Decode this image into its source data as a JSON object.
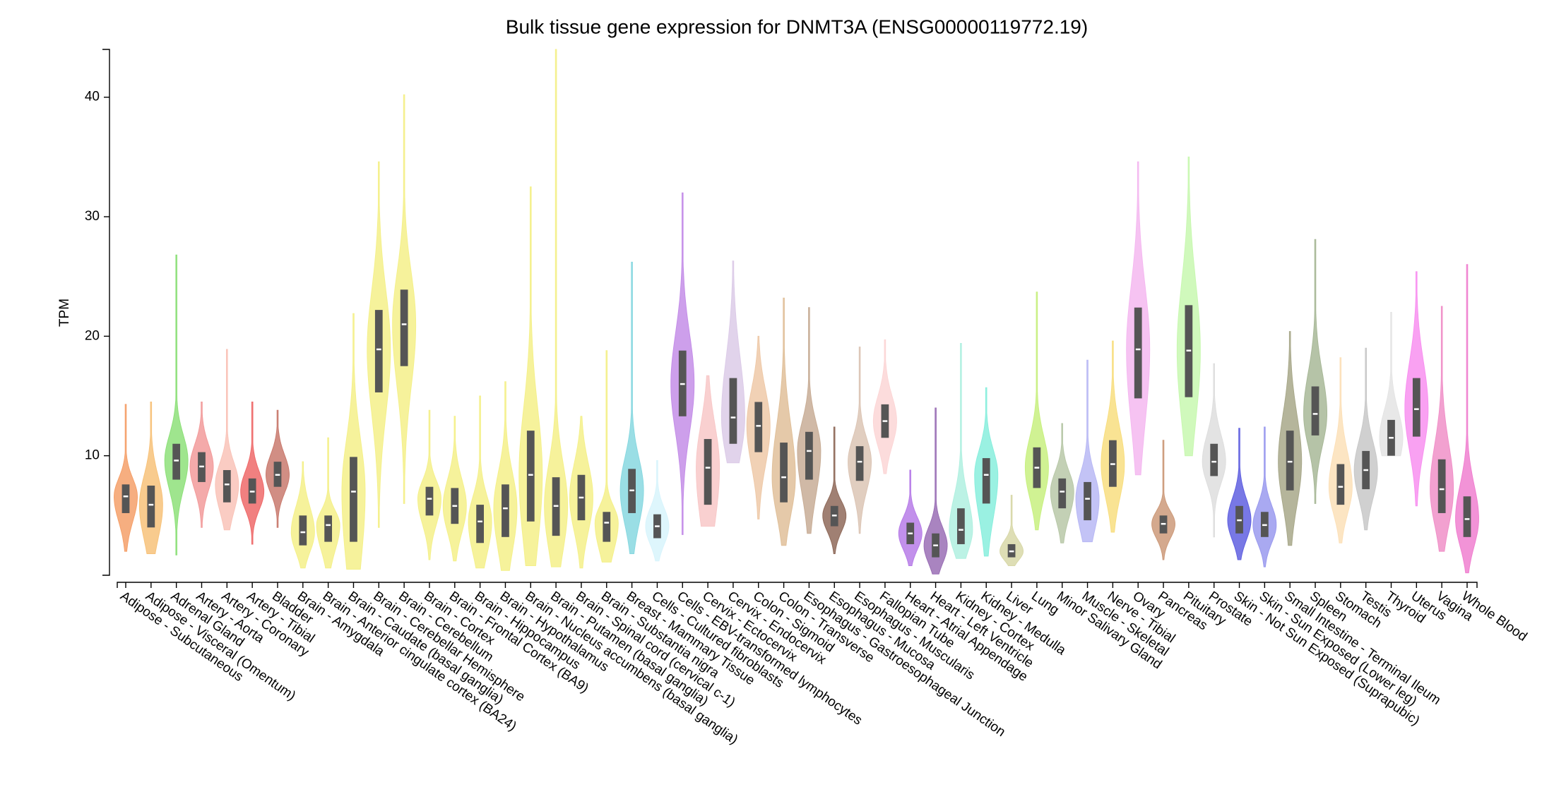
{
  "chart_data": {
    "type": "violin",
    "title": "Bulk tissue gene expression for DNMT3A (ENSG00000119772.19)",
    "y_label": "TPM",
    "ylim": [
      0,
      44
    ],
    "yticks": [
      10,
      20,
      30,
      40
    ],
    "series": [
      {
        "name": "Adipose - Subcutaneous",
        "color": "#f5a06a",
        "min": 2.0,
        "q1": 5.2,
        "median": 6.6,
        "q3": 7.6,
        "max": 14.3
      },
      {
        "name": "Adipose - Visceral (Omentum)",
        "color": "#f7c27a",
        "min": 1.8,
        "q1": 4.0,
        "median": 5.9,
        "q3": 7.5,
        "max": 14.5
      },
      {
        "name": "Adrenal Gland",
        "color": "#8ee07a",
        "min": 1.7,
        "q1": 8.0,
        "median": 9.6,
        "q3": 11.0,
        "max": 26.8
      },
      {
        "name": "Artery - Aorta",
        "color": "#f29b9b",
        "min": 4.0,
        "q1": 7.8,
        "median": 9.1,
        "q3": 10.3,
        "max": 14.5
      },
      {
        "name": "Artery - Coronary",
        "color": "#f9c3b8",
        "min": 3.8,
        "q1": 6.1,
        "median": 7.6,
        "q3": 8.8,
        "max": 18.9
      },
      {
        "name": "Artery - Tibial",
        "color": "#ee6a6a",
        "min": 2.6,
        "q1": 6.0,
        "median": 7.0,
        "q3": 8.1,
        "max": 14.5
      },
      {
        "name": "Bladder",
        "color": "#c97a6e",
        "min": 4.0,
        "q1": 7.4,
        "median": 8.4,
        "q3": 9.5,
        "max": 13.8
      },
      {
        "name": "Brain - Amygdala",
        "color": "#f4f08a",
        "min": 0.6,
        "q1": 2.5,
        "median": 3.6,
        "q3": 5.0,
        "max": 9.5
      },
      {
        "name": "Brain - Anterior cingulate cortex (BA24)",
        "color": "#f4f08a",
        "min": 0.6,
        "q1": 2.8,
        "median": 4.2,
        "q3": 5.0,
        "max": 11.5
      },
      {
        "name": "Brain - Caudate (basal ganglia)",
        "color": "#f4f08a",
        "min": 0.5,
        "q1": 2.8,
        "median": 7.0,
        "q3": 9.9,
        "max": 21.9
      },
      {
        "name": "Brain - Cerebellar Hemisphere",
        "color": "#f4f08a",
        "min": 4.0,
        "q1": 15.3,
        "median": 18.9,
        "q3": 22.2,
        "max": 34.6
      },
      {
        "name": "Brain - Cerebellum",
        "color": "#f4f08a",
        "min": 6.0,
        "q1": 17.5,
        "median": 21.0,
        "q3": 23.9,
        "max": 40.2
      },
      {
        "name": "Brain - Cortex",
        "color": "#f4f08a",
        "min": 1.3,
        "q1": 5.0,
        "median": 6.4,
        "q3": 7.4,
        "max": 13.8
      },
      {
        "name": "Brain - Frontal Cortex (BA9)",
        "color": "#f4f08a",
        "min": 1.2,
        "q1": 4.3,
        "median": 5.8,
        "q3": 7.3,
        "max": 13.3
      },
      {
        "name": "Brain - Hippocampus",
        "color": "#f4f08a",
        "min": 0.6,
        "q1": 2.7,
        "median": 4.5,
        "q3": 5.9,
        "max": 15.0
      },
      {
        "name": "Brain - Hypothalamus",
        "color": "#f4f08a",
        "min": 0.4,
        "q1": 3.2,
        "median": 5.6,
        "q3": 7.6,
        "max": 16.2
      },
      {
        "name": "Brain - Nucleus accumbens (basal ganglia)",
        "color": "#f4f08a",
        "min": 0.8,
        "q1": 4.5,
        "median": 8.4,
        "q3": 12.1,
        "max": 32.5
      },
      {
        "name": "Brain - Putamen (basal ganglia)",
        "color": "#f4f08a",
        "min": 0.7,
        "q1": 3.3,
        "median": 5.8,
        "q3": 8.2,
        "max": 44.0
      },
      {
        "name": "Brain - Spinal cord (cervical c-1)",
        "color": "#f4f08a",
        "min": 0.6,
        "q1": 4.6,
        "median": 6.5,
        "q3": 8.4,
        "max": 13.3
      },
      {
        "name": "Brain - Substantia nigra",
        "color": "#f4f08a",
        "min": 1.1,
        "q1": 2.8,
        "median": 4.4,
        "q3": 5.3,
        "max": 18.8
      },
      {
        "name": "Breast - Mammary Tissue",
        "color": "#88d8e0",
        "min": 1.8,
        "q1": 5.2,
        "median": 7.1,
        "q3": 8.9,
        "max": 26.2
      },
      {
        "name": "Cells - Cultured fibroblasts",
        "color": "#d8f4fc",
        "min": 1.2,
        "q1": 3.1,
        "median": 4.1,
        "q3": 5.1,
        "max": 9.6
      },
      {
        "name": "Cells - EBV-transformed lymphocytes",
        "color": "#c48ee8",
        "min": 3.4,
        "q1": 13.3,
        "median": 16.0,
        "q3": 18.8,
        "max": 32.0
      },
      {
        "name": "Cervix - Ectocervix",
        "color": "#f8c8c8",
        "min": 4.1,
        "q1": 5.9,
        "median": 9.0,
        "q3": 11.4,
        "max": 16.7
      },
      {
        "name": "Cervix - Endocervix",
        "color": "#dccbe8",
        "min": 9.4,
        "q1": 11.0,
        "median": 13.2,
        "q3": 16.5,
        "max": 26.3
      },
      {
        "name": "Colon - Sigmoid",
        "color": "#eec9a8",
        "min": 4.7,
        "q1": 10.3,
        "median": 12.5,
        "q3": 14.5,
        "max": 20.0
      },
      {
        "name": "Colon - Transverse",
        "color": "#e0c09a",
        "min": 2.5,
        "q1": 6.1,
        "median": 8.2,
        "q3": 11.1,
        "max": 23.2
      },
      {
        "name": "Esophagus - Gastroesophageal Junction",
        "color": "#c8ad96",
        "min": 3.5,
        "q1": 8.0,
        "median": 10.4,
        "q3": 12.0,
        "max": 22.4
      },
      {
        "name": "Esophagus - Mucosa",
        "color": "#8f6a5a",
        "min": 1.8,
        "q1": 4.1,
        "median": 5.0,
        "q3": 5.8,
        "max": 12.4
      },
      {
        "name": "Esophagus - Muscularis",
        "color": "#dcc5b5",
        "min": 3.5,
        "q1": 7.9,
        "median": 9.5,
        "q3": 10.8,
        "max": 19.1
      },
      {
        "name": "Fallopian Tube",
        "color": "#fcd6d6",
        "min": 8.5,
        "q1": 11.5,
        "median": 12.9,
        "q3": 14.3,
        "max": 19.7
      },
      {
        "name": "Heart - Atrial Appendage",
        "color": "#b77de8",
        "min": 0.8,
        "q1": 2.6,
        "median": 3.5,
        "q3": 4.4,
        "max": 8.8
      },
      {
        "name": "Heart - Left Ventricle",
        "color": "#9a6fb5",
        "min": 0.1,
        "q1": 1.5,
        "median": 2.5,
        "q3": 3.5,
        "max": 14.0
      },
      {
        "name": "Kidney - Cortex",
        "color": "#b0f0e0",
        "min": 1.4,
        "q1": 2.6,
        "median": 3.8,
        "q3": 5.6,
        "max": 19.4
      },
      {
        "name": "Kidney - Medulla",
        "color": "#88eedd",
        "min": 1.6,
        "q1": 6.0,
        "median": 8.4,
        "q3": 9.8,
        "max": 15.7
      },
      {
        "name": "Liver",
        "color": "#d8d8a8",
        "min": 0.8,
        "q1": 1.5,
        "median": 2.0,
        "q3": 2.6,
        "max": 6.7
      },
      {
        "name": "Lung",
        "color": "#c8f080",
        "min": 3.8,
        "q1": 7.3,
        "median": 9.0,
        "q3": 10.7,
        "max": 23.7
      },
      {
        "name": "Minor Salivary Gland",
        "color": "#b8c8a8",
        "min": 2.7,
        "q1": 5.6,
        "median": 7.0,
        "q3": 8.1,
        "max": 12.7
      },
      {
        "name": "Muscle - Skeletal",
        "color": "#b8b8f4",
        "min": 2.8,
        "q1": 4.6,
        "median": 6.4,
        "q3": 7.8,
        "max": 18.0
      },
      {
        "name": "Nerve - Tibial",
        "color": "#f8de80",
        "min": 3.6,
        "q1": 7.4,
        "median": 9.3,
        "q3": 11.3,
        "max": 19.6
      },
      {
        "name": "Ovary",
        "color": "#f4b8f0",
        "min": 8.4,
        "q1": 14.8,
        "median": 18.9,
        "q3": 22.4,
        "max": 34.6
      },
      {
        "name": "Pancreas",
        "color": "#cc9a7a",
        "min": 1.3,
        "q1": 3.5,
        "median": 4.3,
        "q3": 5.0,
        "max": 11.3
      },
      {
        "name": "Pituitary",
        "color": "#c8f8b0",
        "min": 10.0,
        "q1": 14.9,
        "median": 18.8,
        "q3": 22.6,
        "max": 35.0
      },
      {
        "name": "Prostate",
        "color": "#dedede",
        "min": 3.2,
        "q1": 8.3,
        "median": 9.5,
        "q3": 11.0,
        "max": 17.7
      },
      {
        "name": "Skin - Not Sun Exposed (Suprapubic)",
        "color": "#6060e0",
        "min": 1.3,
        "q1": 3.5,
        "median": 4.6,
        "q3": 5.8,
        "max": 12.3
      },
      {
        "name": "Skin - Sun Exposed (Lower leg)",
        "color": "#9a9aee",
        "min": 0.7,
        "q1": 3.2,
        "median": 4.2,
        "q3": 5.3,
        "max": 12.4
      },
      {
        "name": "Small Intestine - Terminal Ileum",
        "color": "#a8a88a",
        "min": 2.5,
        "q1": 7.1,
        "median": 9.5,
        "q3": 12.1,
        "max": 20.4
      },
      {
        "name": "Spleen",
        "color": "#a8b898",
        "min": 6.0,
        "q1": 11.7,
        "median": 13.5,
        "q3": 15.8,
        "max": 28.1
      },
      {
        "name": "Stomach",
        "color": "#fce0b8",
        "min": 2.7,
        "q1": 5.9,
        "median": 7.4,
        "q3": 9.3,
        "max": 18.2
      },
      {
        "name": "Testis",
        "color": "#c8c8c8",
        "min": 3.8,
        "q1": 7.2,
        "median": 8.8,
        "q3": 10.4,
        "max": 19.0
      },
      {
        "name": "Thyroid",
        "color": "#e4e4e4",
        "min": 10.0,
        "q1": 10.0,
        "median": 11.5,
        "q3": 13.0,
        "max": 22.0
      },
      {
        "name": "Uterus",
        "color": "#f890f0",
        "min": 5.8,
        "q1": 11.6,
        "median": 13.9,
        "q3": 16.5,
        "max": 25.4
      },
      {
        "name": "Vagina",
        "color": "#f090c8",
        "min": 2.0,
        "q1": 5.2,
        "median": 7.2,
        "q3": 9.7,
        "max": 22.5
      },
      {
        "name": "Whole Blood",
        "color": "#f080d0",
        "min": 0.2,
        "q1": 3.2,
        "median": 4.7,
        "q3": 6.6,
        "max": 26.0
      }
    ]
  }
}
